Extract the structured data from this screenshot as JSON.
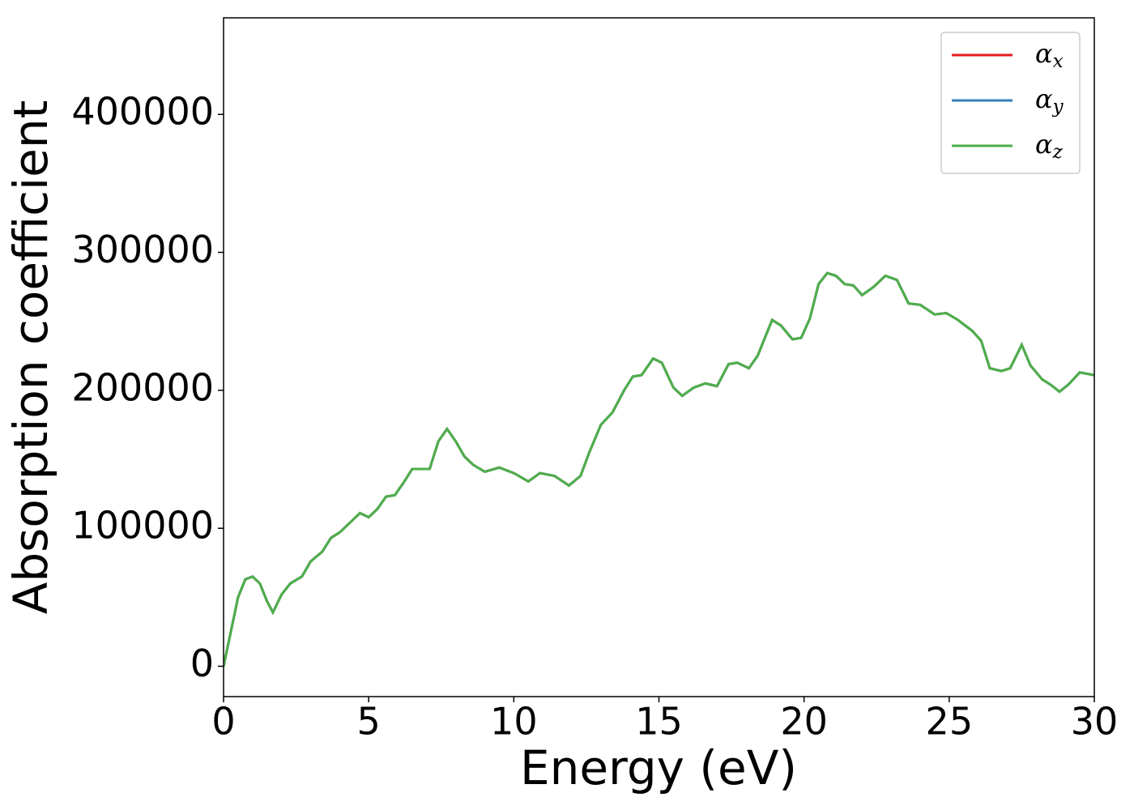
{
  "chart_data": {
    "type": "line",
    "xlabel": "Energy (eV)",
    "ylabel": "Absorption coefficient",
    "x": [
      0,
      0.25,
      0.5,
      0.75,
      1.0,
      1.25,
      1.5,
      1.7,
      2.0,
      2.3,
      2.7,
      3.0,
      3.4,
      3.7,
      4.0,
      4.4,
      4.7,
      5.0,
      5.3,
      5.6,
      5.9,
      6.2,
      6.5,
      6.8,
      7.1,
      7.4,
      7.7,
      8.0,
      8.3,
      8.6,
      9.0,
      9.5,
      10.0,
      10.5,
      10.9,
      11.4,
      11.9,
      12.3,
      12.6,
      13.0,
      13.4,
      13.8,
      14.1,
      14.4,
      14.8,
      15.1,
      15.5,
      15.8,
      16.2,
      16.6,
      17.0,
      17.4,
      17.7,
      18.1,
      18.4,
      18.9,
      19.2,
      19.6,
      19.9,
      20.2,
      20.5,
      20.8,
      21.1,
      21.4,
      21.7,
      22.0,
      22.4,
      22.8,
      23.2,
      23.6,
      24.0,
      24.5,
      24.9,
      25.3,
      25.8,
      26.1,
      26.4,
      26.8,
      27.1,
      27.5,
      27.8,
      28.2,
      28.5,
      28.8,
      29.1,
      29.5,
      30.0
    ],
    "series": [
      {
        "name": "αx",
        "color": "#e41a1c",
        "values": [
          0,
          25000,
          50000,
          63000,
          65000,
          60000,
          47000,
          39000,
          52000,
          60000,
          65000,
          76000,
          83000,
          93000,
          97000,
          105000,
          111000,
          108000,
          114000,
          123000,
          124000,
          133000,
          143000,
          143000,
          143000,
          163000,
          172000,
          163000,
          152000,
          146000,
          141000,
          144000,
          140000,
          134000,
          140000,
          138000,
          131000,
          138000,
          155000,
          175000,
          184000,
          200000,
          210000,
          211000,
          223000,
          220000,
          202000,
          196000,
          202000,
          205000,
          203000,
          219000,
          220000,
          216000,
          225000,
          251000,
          247000,
          237000,
          238000,
          252000,
          277000,
          285000,
          283000,
          277000,
          276000,
          269000,
          275000,
          283000,
          280000,
          263000,
          262000,
          255000,
          256000,
          251000,
          243000,
          236000,
          216000,
          214000,
          216000,
          233000,
          218000,
          208000,
          204000,
          199000,
          204000,
          213000,
          211000
        ]
      },
      {
        "name": "αy",
        "color": "#377eb8",
        "values": [
          0,
          25000,
          50000,
          63000,
          65000,
          60000,
          47000,
          39000,
          52000,
          60000,
          65000,
          76000,
          83000,
          93000,
          97000,
          105000,
          111000,
          108000,
          114000,
          123000,
          124000,
          133000,
          143000,
          143000,
          143000,
          163000,
          172000,
          163000,
          152000,
          146000,
          141000,
          144000,
          140000,
          134000,
          140000,
          138000,
          131000,
          138000,
          155000,
          175000,
          184000,
          200000,
          210000,
          211000,
          223000,
          220000,
          202000,
          196000,
          202000,
          205000,
          203000,
          219000,
          220000,
          216000,
          225000,
          251000,
          247000,
          237000,
          238000,
          252000,
          277000,
          285000,
          283000,
          277000,
          276000,
          269000,
          275000,
          283000,
          280000,
          263000,
          262000,
          255000,
          256000,
          251000,
          243000,
          236000,
          216000,
          214000,
          216000,
          233000,
          218000,
          208000,
          204000,
          199000,
          204000,
          213000,
          211000
        ]
      },
      {
        "name": "αz",
        "color": "#4daf4a",
        "values": [
          0,
          25000,
          50000,
          63000,
          65000,
          60000,
          47000,
          39000,
          52000,
          60000,
          65000,
          76000,
          83000,
          93000,
          97000,
          105000,
          111000,
          108000,
          114000,
          123000,
          124000,
          133000,
          143000,
          143000,
          143000,
          163000,
          172000,
          163000,
          152000,
          146000,
          141000,
          144000,
          140000,
          134000,
          140000,
          138000,
          131000,
          138000,
          155000,
          175000,
          184000,
          200000,
          210000,
          211000,
          223000,
          220000,
          202000,
          196000,
          202000,
          205000,
          203000,
          219000,
          220000,
          216000,
          225000,
          251000,
          247000,
          237000,
          238000,
          252000,
          277000,
          285000,
          283000,
          277000,
          276000,
          269000,
          275000,
          283000,
          280000,
          263000,
          262000,
          255000,
          256000,
          251000,
          243000,
          236000,
          216000,
          214000,
          216000,
          233000,
          218000,
          208000,
          204000,
          199000,
          204000,
          213000,
          211000
        ]
      }
    ],
    "xlim": [
      0,
      30
    ],
    "xticks": [
      0,
      5,
      10,
      15,
      20,
      25,
      30
    ],
    "ylim": [
      -22000,
      470000
    ],
    "yticks": [
      0,
      100000,
      200000,
      300000,
      400000
    ],
    "grid": false,
    "legend": "upper right"
  }
}
